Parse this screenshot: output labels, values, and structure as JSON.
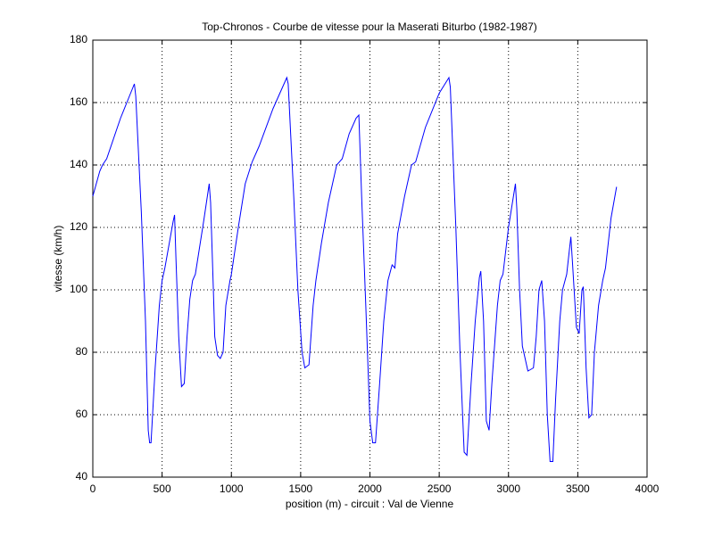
{
  "chart_data": {
    "type": "line",
    "title": "Top-Chronos - Courbe de vitesse pour la Maserati Biturbo (1982-1987)",
    "xlabel": "position (m) - circuit : Val de Vienne",
    "ylabel": "vitesse (km/h)",
    "x": [
      0,
      50,
      70,
      100,
      200,
      300,
      310,
      350,
      380,
      400,
      410,
      420,
      450,
      480,
      500,
      520,
      580,
      590,
      600,
      620,
      640,
      660,
      680,
      700,
      720,
      740,
      800,
      840,
      850,
      870,
      880,
      900,
      920,
      940,
      960,
      990,
      1000,
      1050,
      1100,
      1150,
      1200,
      1300,
      1400,
      1410,
      1450,
      1480,
      1510,
      1530,
      1560,
      1590,
      1610,
      1650,
      1700,
      1760,
      1800,
      1850,
      1900,
      1920,
      1940,
      1970,
      2000,
      2020,
      2040,
      2070,
      2100,
      2130,
      2160,
      2180,
      2200,
      2250,
      2300,
      2330,
      2400,
      2500,
      2570,
      2580,
      2620,
      2650,
      2680,
      2700,
      2730,
      2760,
      2790,
      2800,
      2820,
      2840,
      2860,
      2880,
      2920,
      2940,
      2960,
      3000,
      3050,
      3060,
      3080,
      3100,
      3140,
      3180,
      3200,
      3220,
      3240,
      3260,
      3280,
      3300,
      3320,
      3340,
      3370,
      3390,
      3420,
      3450,
      3460,
      3490,
      3510,
      3530,
      3540,
      3560,
      3580,
      3600,
      3620,
      3650,
      3680,
      3700,
      3740,
      3780
    ],
    "values": [
      130,
      138,
      140,
      142,
      155,
      166,
      162,
      125,
      90,
      55,
      51,
      51,
      75,
      95,
      103,
      107,
      122,
      124,
      110,
      85,
      69,
      70,
      85,
      97,
      103,
      105,
      122,
      134,
      128,
      100,
      85,
      79,
      78,
      80,
      95,
      103,
      105,
      120,
      134,
      141,
      146,
      158,
      168,
      166,
      130,
      100,
      80,
      75,
      76,
      95,
      103,
      115,
      128,
      140,
      142,
      150,
      155,
      156,
      130,
      95,
      58,
      51,
      51,
      70,
      90,
      103,
      108,
      107,
      118,
      130,
      140,
      141,
      152,
      163,
      168,
      165,
      120,
      80,
      48,
      47,
      70,
      90,
      104,
      106,
      90,
      58,
      55,
      70,
      95,
      103,
      105,
      120,
      134,
      126,
      100,
      82,
      74,
      75,
      85,
      100,
      103,
      90,
      60,
      45,
      45,
      65,
      90,
      100,
      105,
      117,
      110,
      88,
      86,
      100,
      101,
      75,
      59,
      60,
      80,
      95,
      103,
      107,
      123,
      133
    ],
    "color": "#0000ff",
    "xlim": [
      0,
      4000
    ],
    "xticks": [
      0,
      500,
      1000,
      1500,
      2000,
      2500,
      3000,
      3500,
      4000
    ],
    "ylim": [
      40,
      180
    ],
    "yticks": [
      40,
      60,
      80,
      100,
      120,
      140,
      160,
      180
    ],
    "grid": true
  }
}
